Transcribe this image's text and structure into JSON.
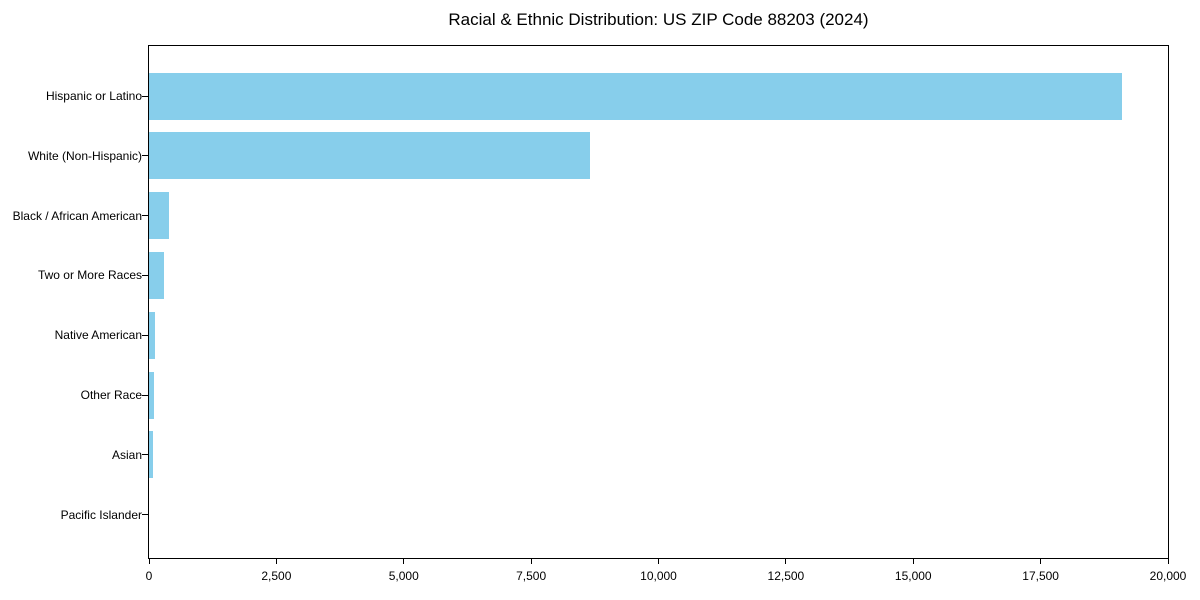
{
  "chart_data": {
    "type": "bar",
    "orientation": "horizontal",
    "title": "Racial & Ethnic Distribution: US ZIP Code 88203 (2024)",
    "categories": [
      "Hispanic or Latino",
      "White (Non-Hispanic)",
      "Black / African American",
      "Two or More Races",
      "Native American",
      "Other Race",
      "Asian",
      "Pacific Islander"
    ],
    "values": [
      19100,
      8650,
      400,
      290,
      115,
      95,
      75,
      0
    ],
    "xlabel": "",
    "ylabel": "",
    "xlim": [
      0,
      20000
    ],
    "x_ticks": [
      0,
      2500,
      5000,
      7500,
      10000,
      12500,
      15000,
      17500,
      20000
    ],
    "x_tick_labels": [
      "0",
      "2,500",
      "5,000",
      "7,500",
      "10,000",
      "12,500",
      "15,000",
      "17,500",
      "20,000"
    ],
    "grid": false,
    "legend": null,
    "colors": {
      "bar_fill": "#87CEEB",
      "axis": "#000000",
      "background": "#FFFFFF",
      "text": "#000000"
    }
  }
}
